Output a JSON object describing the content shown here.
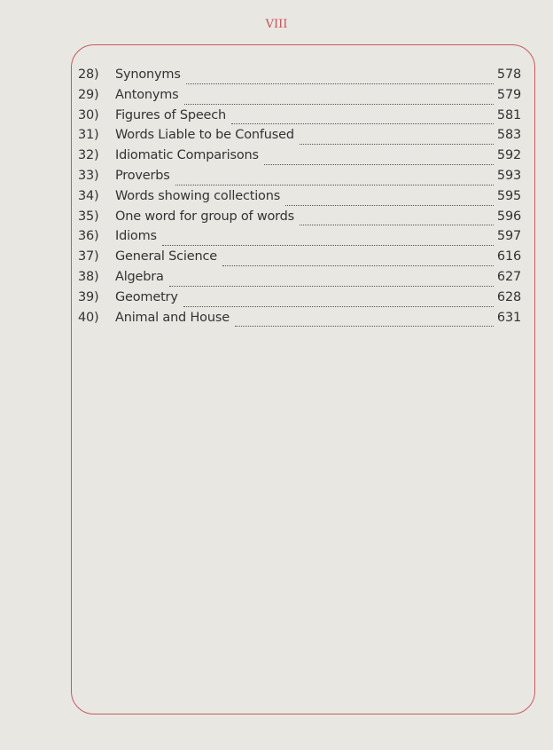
{
  "page_number": "VIII",
  "toc": [
    {
      "num": "28)",
      "title": "Synonyms",
      "page": "578"
    },
    {
      "num": "29)",
      "title": "Antonyms",
      "page": "579"
    },
    {
      "num": "30)",
      "title": "Figures of Speech",
      "page": "581"
    },
    {
      "num": "31)",
      "title": "Words Liable to be Confused",
      "page": "583"
    },
    {
      "num": "32)",
      "title": "Idiomatic Comparisons",
      "page": "592"
    },
    {
      "num": "33)",
      "title": "Proverbs",
      "page": "593"
    },
    {
      "num": "34)",
      "title": "Words showing collections",
      "page": "595"
    },
    {
      "num": "35)",
      "title": "One word for group of words",
      "page": "596"
    },
    {
      "num": "36)",
      "title": "Idioms",
      "page": "597"
    },
    {
      "num": "37)",
      "title": "General Science",
      "page": "616"
    },
    {
      "num": "38)",
      "title": "Algebra",
      "page": "627"
    },
    {
      "num": "39)",
      "title": "Geometry",
      "page": "628"
    },
    {
      "num": "40)",
      "title": "Animal and House",
      "page": "631"
    }
  ]
}
